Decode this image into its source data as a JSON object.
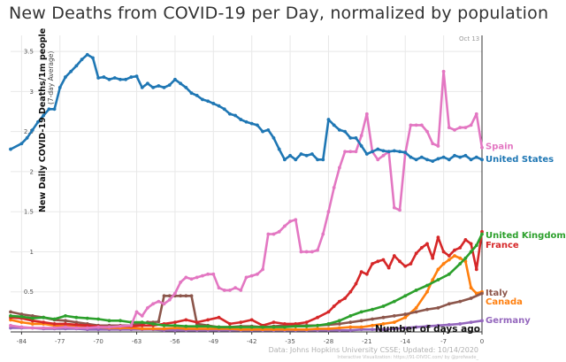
{
  "page_title": "New Deaths from COVID-19 per Day, normalized by population",
  "chart_data": {
    "type": "line",
    "title": "New Deaths from COVID-19 per Day, normalized by population",
    "ylabel": "New Daily COVID-19 Deaths/1m people",
    "ylabel_sub": "(7-day Average)",
    "xlabel": "Number of days ago",
    "date_label": "Oct 13",
    "source": "Data: Johns Hopkins University CSSE; Updated: 10/14/2020",
    "source2": "Interactive Visualization: https://91-DIVOC.com/ by @profwade_",
    "xlim": [
      -86,
      0
    ],
    "ylim": [
      0,
      3.7
    ],
    "x_ticks": [
      -84,
      -77,
      -70,
      -63,
      -56,
      -49,
      -42,
      -35,
      -28,
      -21,
      -14,
      -7,
      0
    ],
    "x_tick_labels": [
      "-84",
      "-77",
      "-70",
      "-63",
      "-56",
      "-49",
      "-42",
      "-35",
      "-28",
      "-21",
      "-14",
      "-7",
      "0"
    ],
    "y_ticks": [
      0.5,
      1,
      1.5,
      2,
      2.5,
      3,
      3.5
    ],
    "y_tick_labels": [
      "0.5",
      "1",
      "1.5",
      "2",
      "2.5",
      "3",
      "3.5"
    ],
    "grid": true,
    "series": [
      {
        "name": "United States",
        "color": "#1f77b4",
        "x": [
          -86,
          -84,
          -83,
          -82,
          -81,
          -80,
          -79,
          -78,
          -77,
          -76,
          -75,
          -74,
          -73,
          -72,
          -71,
          -70,
          -69,
          -68,
          -67,
          -66,
          -65,
          -64,
          -63,
          -62,
          -61,
          -60,
          -59,
          -58,
          -57,
          -56,
          -55,
          -54,
          -53,
          -52,
          -51,
          -50,
          -49,
          -48,
          -47,
          -46,
          -45,
          -44,
          -43,
          -42,
          -41,
          -40,
          -39,
          -38,
          -37,
          -36,
          -35,
          -34,
          -33,
          -32,
          -31,
          -30,
          -29,
          -28,
          -27,
          -26,
          -25,
          -24,
          -23,
          -22,
          -21,
          -20,
          -19,
          -18,
          -17,
          -16,
          -15,
          -14,
          -13,
          -12,
          -11,
          -10,
          -9,
          -8,
          -7,
          -6,
          -5,
          -4,
          -3,
          -2,
          -1,
          0
        ],
        "y": [
          2.28,
          2.35,
          2.42,
          2.52,
          2.62,
          2.7,
          2.78,
          2.78,
          3.05,
          3.18,
          3.25,
          3.32,
          3.4,
          3.46,
          3.42,
          3.17,
          3.18,
          3.15,
          3.17,
          3.15,
          3.15,
          3.18,
          3.19,
          3.05,
          3.1,
          3.05,
          3.07,
          3.05,
          3.08,
          3.15,
          3.1,
          3.05,
          2.98,
          2.95,
          2.9,
          2.88,
          2.85,
          2.82,
          2.78,
          2.72,
          2.7,
          2.65,
          2.62,
          2.6,
          2.58,
          2.5,
          2.52,
          2.42,
          2.28,
          2.15,
          2.2,
          2.15,
          2.22,
          2.2,
          2.22,
          2.15,
          2.15,
          2.65,
          2.58,
          2.52,
          2.5,
          2.42,
          2.42,
          2.32,
          2.22,
          2.25,
          2.28,
          2.26,
          2.25,
          2.26,
          2.25,
          2.24,
          2.18,
          2.15,
          2.18,
          2.15,
          2.13,
          2.16,
          2.18,
          2.15,
          2.2,
          2.18,
          2.2,
          2.15,
          2.18,
          2.15
        ]
      },
      {
        "name": "Spain",
        "color": "#e377c2",
        "x": [
          -86,
          -84,
          -82,
          -80,
          -78,
          -76,
          -74,
          -72,
          -70,
          -68,
          -66,
          -64,
          -63,
          -62,
          -61,
          -60,
          -59,
          -58,
          -57,
          -56,
          -55,
          -54,
          -53,
          -52,
          -51,
          -50,
          -49,
          -48,
          -47,
          -46,
          -45,
          -44,
          -43,
          -42,
          -41,
          -40,
          -39,
          -38,
          -37,
          -36,
          -35,
          -34,
          -33,
          -32,
          -31,
          -30,
          -29,
          -28,
          -27,
          -26,
          -25,
          -24,
          -23,
          -22,
          -21,
          -20,
          -19,
          -18,
          -17,
          -16,
          -15,
          -14,
          -13,
          -12,
          -11,
          -10,
          -9,
          -8,
          -7,
          -6,
          -5,
          -4,
          -3,
          -2,
          -1,
          0
        ],
        "y": [
          0.08,
          0.06,
          0.05,
          0.05,
          0.05,
          0.06,
          0.05,
          0.05,
          0.06,
          0.06,
          0.07,
          0.08,
          0.25,
          0.2,
          0.3,
          0.35,
          0.38,
          0.35,
          0.4,
          0.48,
          0.62,
          0.68,
          0.66,
          0.68,
          0.7,
          0.72,
          0.72,
          0.55,
          0.52,
          0.52,
          0.55,
          0.52,
          0.68,
          0.7,
          0.72,
          0.78,
          1.22,
          1.22,
          1.25,
          1.32,
          1.38,
          1.4,
          1.0,
          1.0,
          1.0,
          1.02,
          1.22,
          1.5,
          1.8,
          2.05,
          2.25,
          2.25,
          2.25,
          2.45,
          2.72,
          2.25,
          2.15,
          2.2,
          2.25,
          1.55,
          1.52,
          2.22,
          2.58,
          2.58,
          2.58,
          2.5,
          2.35,
          2.32,
          3.25,
          2.55,
          2.52,
          2.55,
          2.55,
          2.58,
          2.72,
          2.3
        ]
      },
      {
        "name": "United Kingdom",
        "color": "#2ca02c",
        "x": [
          -86,
          -84,
          -82,
          -80,
          -78,
          -76,
          -74,
          -72,
          -70,
          -68,
          -66,
          -64,
          -62,
          -60,
          -58,
          -56,
          -54,
          -52,
          -50,
          -48,
          -46,
          -44,
          -42,
          -40,
          -38,
          -36,
          -34,
          -32,
          -30,
          -28,
          -26,
          -24,
          -22,
          -20,
          -18,
          -16,
          -14,
          -12,
          -10,
          -8,
          -6,
          -4,
          -3,
          -2,
          -1,
          0
        ],
        "y": [
          0.2,
          0.19,
          0.17,
          0.18,
          0.16,
          0.2,
          0.18,
          0.17,
          0.16,
          0.14,
          0.14,
          0.12,
          0.12,
          0.1,
          0.08,
          0.08,
          0.07,
          0.07,
          0.07,
          0.06,
          0.06,
          0.06,
          0.06,
          0.06,
          0.06,
          0.06,
          0.07,
          0.07,
          0.08,
          0.1,
          0.14,
          0.2,
          0.25,
          0.28,
          0.32,
          0.38,
          0.45,
          0.52,
          0.58,
          0.65,
          0.72,
          0.85,
          0.92,
          1.0,
          1.08,
          1.22
        ]
      },
      {
        "name": "France",
        "color": "#d62728",
        "x": [
          -86,
          -84,
          -82,
          -80,
          -78,
          -76,
          -74,
          -72,
          -70,
          -68,
          -66,
          -64,
          -62,
          -60,
          -58,
          -56,
          -54,
          -52,
          -50,
          -48,
          -46,
          -44,
          -42,
          -40,
          -38,
          -36,
          -34,
          -32,
          -30,
          -28,
          -27,
          -26,
          -25,
          -24,
          -23,
          -22,
          -21,
          -20,
          -19,
          -18,
          -17,
          -16,
          -15,
          -14,
          -13,
          -12,
          -11,
          -10,
          -9,
          -8,
          -7,
          -6,
          -5,
          -4,
          -3,
          -2,
          -1,
          0
        ],
        "y": [
          0.18,
          0.17,
          0.14,
          0.12,
          0.1,
          0.1,
          0.09,
          0.08,
          0.07,
          0.06,
          0.07,
          0.07,
          0.08,
          0.08,
          0.1,
          0.12,
          0.15,
          0.12,
          0.15,
          0.18,
          0.1,
          0.12,
          0.15,
          0.08,
          0.12,
          0.1,
          0.1,
          0.12,
          0.18,
          0.25,
          0.32,
          0.38,
          0.42,
          0.5,
          0.6,
          0.75,
          0.72,
          0.85,
          0.88,
          0.9,
          0.8,
          0.95,
          0.88,
          0.82,
          0.85,
          0.98,
          1.05,
          1.1,
          0.92,
          1.18,
          1.0,
          0.95,
          1.02,
          1.05,
          1.15,
          1.1,
          0.78,
          1.25
        ]
      },
      {
        "name": "Italy",
        "color": "#8c564b",
        "x": [
          -86,
          -84,
          -82,
          -80,
          -78,
          -76,
          -74,
          -72,
          -70,
          -68,
          -66,
          -64,
          -63,
          -62,
          -61,
          -60,
          -59,
          -58,
          -57,
          -56,
          -55,
          -54,
          -53,
          -52,
          -50,
          -48,
          -46,
          -44,
          -42,
          -40,
          -38,
          -36,
          -34,
          -32,
          -30,
          -28,
          -26,
          -24,
          -22,
          -20,
          -18,
          -16,
          -14,
          -12,
          -10,
          -8,
          -6,
          -4,
          -2,
          0
        ],
        "y": [
          0.25,
          0.22,
          0.2,
          0.18,
          0.15,
          0.14,
          0.12,
          0.1,
          0.08,
          0.08,
          0.08,
          0.08,
          0.1,
          0.1,
          0.12,
          0.12,
          0.13,
          0.45,
          0.45,
          0.45,
          0.45,
          0.45,
          0.45,
          0.1,
          0.08,
          0.06,
          0.06,
          0.07,
          0.07,
          0.06,
          0.07,
          0.08,
          0.08,
          0.08,
          0.08,
          0.09,
          0.1,
          0.12,
          0.14,
          0.16,
          0.18,
          0.2,
          0.22,
          0.25,
          0.28,
          0.3,
          0.35,
          0.38,
          0.42,
          0.48
        ]
      },
      {
        "name": "Canada",
        "color": "#ff7f0e",
        "x": [
          -86,
          -84,
          -82,
          -80,
          -78,
          -76,
          -74,
          -72,
          -70,
          -68,
          -66,
          -64,
          -62,
          -60,
          -58,
          -56,
          -54,
          -52,
          -50,
          -48,
          -46,
          -44,
          -42,
          -40,
          -38,
          -36,
          -34,
          -32,
          -30,
          -28,
          -26,
          -24,
          -22,
          -20,
          -18,
          -16,
          -14,
          -12,
          -10,
          -9,
          -8,
          -7,
          -6,
          -5,
          -4,
          -3,
          -2,
          -1,
          0
        ],
        "y": [
          0.15,
          0.12,
          0.1,
          0.1,
          0.08,
          0.08,
          0.08,
          0.07,
          0.06,
          0.05,
          0.05,
          0.05,
          0.04,
          0.04,
          0.04,
          0.05,
          0.04,
          0.04,
          0.04,
          0.04,
          0.04,
          0.03,
          0.03,
          0.03,
          0.03,
          0.03,
          0.03,
          0.03,
          0.04,
          0.04,
          0.05,
          0.06,
          0.06,
          0.08,
          0.1,
          0.12,
          0.18,
          0.3,
          0.5,
          0.65,
          0.78,
          0.85,
          0.9,
          0.95,
          0.92,
          0.88,
          0.55,
          0.48,
          0.5
        ]
      },
      {
        "name": "Germany",
        "color": "#9467bd",
        "x": [
          -86,
          -84,
          -82,
          -80,
          -78,
          -76,
          -74,
          -72,
          -70,
          -68,
          -66,
          -64,
          -62,
          -60,
          -58,
          -56,
          -54,
          -52,
          -50,
          -48,
          -46,
          -44,
          -42,
          -40,
          -38,
          -36,
          -34,
          -32,
          -30,
          -28,
          -26,
          -24,
          -22,
          -20,
          -18,
          -16,
          -14,
          -12,
          -10,
          -8,
          -6,
          -4,
          -2,
          0
        ],
        "y": [
          0.05,
          0.05,
          0.05,
          0.04,
          0.04,
          0.04,
          0.04,
          0.03,
          0.03,
          0.03,
          0.03,
          0.03,
          0.03,
          0.03,
          0.02,
          0.02,
          0.02,
          0.02,
          0.02,
          0.02,
          0.02,
          0.02,
          0.02,
          0.02,
          0.02,
          0.02,
          0.02,
          0.02,
          0.02,
          0.02,
          0.02,
          0.02,
          0.03,
          0.03,
          0.03,
          0.04,
          0.05,
          0.06,
          0.07,
          0.08,
          0.09,
          0.1,
          0.12,
          0.14
        ]
      }
    ],
    "end_labels": [
      {
        "text": "Spain",
        "color": "#e377c2"
      },
      {
        "text": "United States",
        "color": "#1f77b4"
      },
      {
        "text": "United Kingdom",
        "color": "#2ca02c"
      },
      {
        "text": "France",
        "color": "#d62728"
      },
      {
        "text": "Italy",
        "color": "#8c564b"
      },
      {
        "text": "Canada",
        "color": "#ff7f0e"
      },
      {
        "text": "Germany",
        "color": "#9467bd"
      }
    ]
  }
}
